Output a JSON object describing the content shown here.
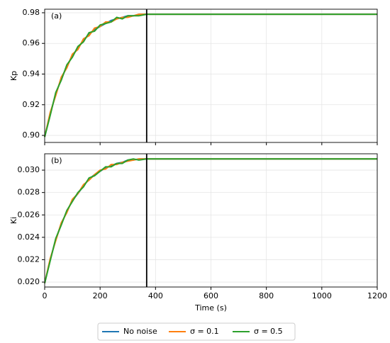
{
  "chart_data": [
    {
      "type": "line",
      "annotation": "(a)",
      "ylabel": "Kp",
      "x": [
        0,
        20,
        40,
        60,
        80,
        100,
        120,
        140,
        160,
        180,
        200,
        220,
        240,
        260,
        280,
        300,
        320,
        340,
        368,
        1200
      ],
      "series": [
        {
          "color": "#1f77b4",
          "values": [
            0.899,
            0.914,
            0.927,
            0.937,
            0.945,
            0.952,
            0.957,
            0.962,
            0.966,
            0.969,
            0.971,
            0.973,
            0.975,
            0.976,
            0.977,
            0.978,
            0.978,
            0.979,
            0.979,
            0.979
          ]
        },
        {
          "color": "#ff7f0e",
          "values": [
            0.899,
            0.915,
            0.926,
            0.938,
            0.944,
            0.953,
            0.956,
            0.963,
            0.965,
            0.97,
            0.971,
            0.974,
            0.974,
            0.976,
            0.977,
            0.977,
            0.978,
            0.979,
            0.979,
            0.979
          ]
        },
        {
          "color": "#2ca02c",
          "values": [
            0.899,
            0.913,
            0.928,
            0.936,
            0.946,
            0.951,
            0.958,
            0.961,
            0.967,
            0.968,
            0.972,
            0.973,
            0.974,
            0.977,
            0.976,
            0.978,
            0.978,
            0.978,
            0.979,
            0.979
          ]
        }
      ],
      "vline": 368,
      "xlim": [
        0,
        1200
      ],
      "xticks": [
        0,
        200,
        400,
        600,
        800,
        1000,
        1200
      ],
      "xtick_labels": false,
      "ylim": [
        0.8954,
        0.9823
      ],
      "yticks": [
        {
          "value": 0.9,
          "label": "0.90"
        },
        0.92,
        0.94,
        0.96,
        0.98
      ],
      "grid": true
    },
    {
      "type": "line",
      "annotation": "(b)",
      "ylabel": "Ki",
      "xlabel": "Time (s)",
      "x": [
        0,
        20,
        40,
        60,
        80,
        100,
        120,
        140,
        160,
        180,
        200,
        220,
        240,
        260,
        280,
        300,
        320,
        340,
        368,
        1200
      ],
      "series": [
        {
          "name": "No noise",
          "color": "#1f77b4",
          "values": [
            0.0199,
            0.022,
            0.0238,
            0.0252,
            0.0263,
            0.0273,
            0.0279,
            0.0286,
            0.0292,
            0.0296,
            0.0299,
            0.0302,
            0.0304,
            0.0306,
            0.0307,
            0.0309,
            0.0309,
            0.031,
            0.031,
            0.031
          ]
        },
        {
          "name": "σ = 0.1",
          "color": "#ff7f0e",
          "values": [
            0.0199,
            0.0221,
            0.0237,
            0.0253,
            0.0262,
            0.0274,
            0.0279,
            0.0287,
            0.0291,
            0.0296,
            0.03,
            0.0301,
            0.0305,
            0.0305,
            0.0307,
            0.0308,
            0.0309,
            0.031,
            0.031,
            0.031
          ]
        },
        {
          "name": "σ = 0.5",
          "color": "#2ca02c",
          "values": [
            0.0199,
            0.0219,
            0.0239,
            0.0251,
            0.0264,
            0.0272,
            0.028,
            0.0285,
            0.0293,
            0.0295,
            0.0299,
            0.0303,
            0.0303,
            0.0306,
            0.0306,
            0.0309,
            0.031,
            0.0309,
            0.031,
            0.031
          ]
        }
      ],
      "vline": 368,
      "xlim": [
        0,
        1200
      ],
      "xticks": [
        0,
        200,
        400,
        600,
        800,
        1000,
        1200
      ],
      "xtick_labels": true,
      "ylim": [
        0.01956,
        0.03146
      ],
      "yticks": [
        {
          "value": 0.02,
          "label": "0.020"
        },
        0.022,
        0.024,
        0.026,
        0.028,
        {
          "value": 0.03,
          "label": "0.030"
        }
      ],
      "grid": true,
      "legend": "bottom"
    }
  ]
}
